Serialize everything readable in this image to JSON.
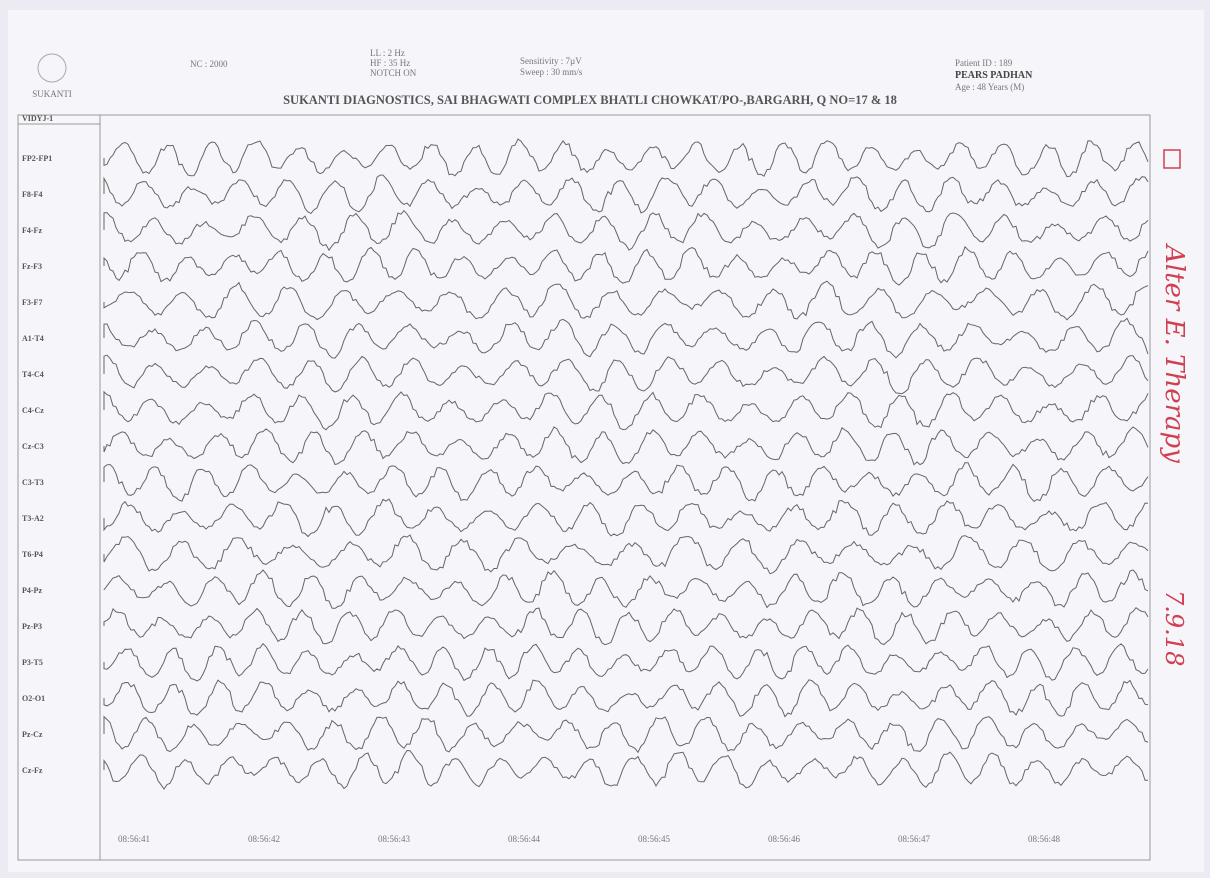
{
  "header": {
    "logo_caption": "SUKANTI",
    "left_info": "NC : 2000",
    "filters": [
      "LL : 2 Hz",
      "HF : 35 Hz",
      "NOTCH ON"
    ],
    "settings": [
      "Sensitivity : 7µV",
      "Sweep : 30 mm/s"
    ],
    "patient": [
      "Patient ID : 189",
      "PEARS PADHAN",
      "Age : 48 Years (M)"
    ],
    "title": "SUKANTI DIAGNOSTICS, SAI BHAGWATI COMPLEX BHATLI CHOWKAT/PO-,BARGARH, Q NO=17 & 18"
  },
  "montage": "VIDYJ-1",
  "channels": [
    "FP2-FP1",
    "F8-F4",
    "F4-Fz",
    "Fz-F3",
    "F3-F7",
    "A1-T4",
    "T4-C4",
    "C4-Cz",
    "Cz-C3",
    "C3-T3",
    "T3-A2",
    "T6-P4",
    "P4-Pz",
    "Pz-P3",
    "P3-T5",
    "O2-O1",
    "Pz-Cz",
    "Cz-Fz"
  ],
  "time_labels": [
    "08:56:41",
    "08:56:42",
    "08:56:43",
    "08:56:44",
    "08:56:45",
    "08:56:46",
    "08:56:47",
    "08:56:48"
  ],
  "handwritten_note": "Alter E. Therapy",
  "handwritten_date": "7.9.18"
}
